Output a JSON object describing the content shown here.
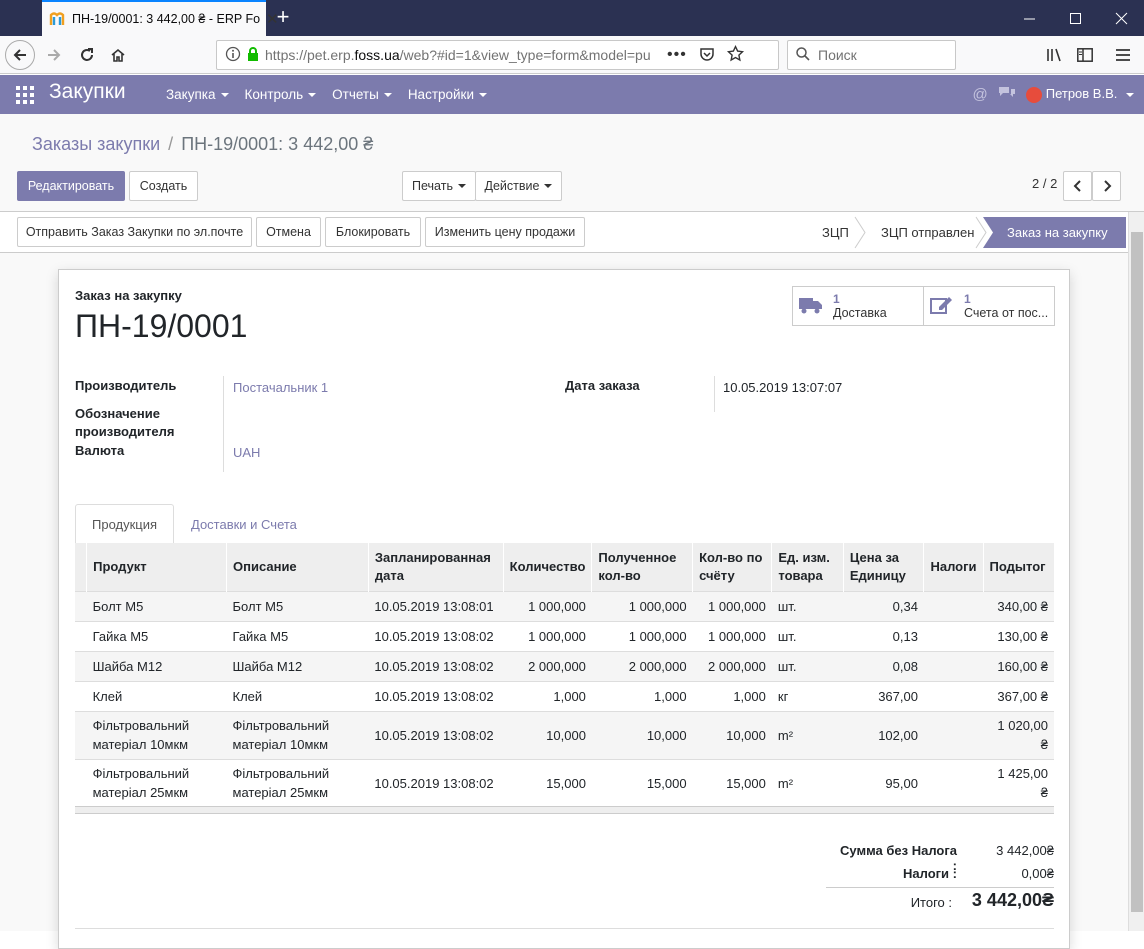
{
  "browser": {
    "tab_title": "ПН-19/0001: 3 442,00 ₴ - ERP Fo",
    "url_host": "https://pet.erp.",
    "url_domain": "foss.ua",
    "url_rest": "/web?#id=1&view_type=form&model=pu",
    "search_placeholder": "Поиск"
  },
  "app": {
    "name": "Закупки",
    "menu": [
      "Закупка",
      "Контроль",
      "Отчеты",
      "Настройки"
    ],
    "user": "Петров В.В."
  },
  "breadcrumb": {
    "parent": "Заказы закупки",
    "current": "ПН-19/0001: 3 442,00 ₴"
  },
  "buttons": {
    "edit": "Редактировать",
    "create": "Создать",
    "print": "Печать",
    "action": "Действие",
    "send_email": "Отправить Заказ Закупки по эл.почте",
    "cancel": "Отмена",
    "block": "Блокировать",
    "change_price": "Изменить цену продажи"
  },
  "pager": "2 / 2",
  "stages": [
    "ЗЦП",
    "ЗЦП отправлен",
    "Заказ на закупку"
  ],
  "active_stage": "Заказ на закупку",
  "form": {
    "doc_type": "Заказ на закупку",
    "doc_number": "ПН-19/0001",
    "smart_buttons": [
      {
        "count": "1",
        "label": "Доставка",
        "icon": "truck-icon"
      },
      {
        "count": "1",
        "label": "Счета от пос...",
        "icon": "pencil-square-icon"
      }
    ],
    "vendor_label": "Производитель",
    "vendor_value": "Постачальник 1",
    "vendor_ref_label": "Обозначение производителя",
    "currency_label": "Валюта",
    "currency_value": "UAH",
    "order_date_label": "Дата заказа",
    "order_date_value": "10.05.2019 13:07:07"
  },
  "tabs": [
    "Продукция",
    "Доставки и Счета"
  ],
  "table": {
    "headers": [
      "Продукт",
      "Описание",
      "Запланированная дата",
      "Количество",
      "Полученное кол-во",
      "Кол-во по счёту",
      "Ед. изм. товара",
      "Цена за Единицу",
      "Налоги",
      "Подытог"
    ],
    "rows": [
      [
        "Болт М5",
        "Болт М5",
        "10.05.2019 13:08:01",
        "1 000,000",
        "1 000,000",
        "1 000,000",
        "шт.",
        "0,34",
        "",
        "340,00 ₴"
      ],
      [
        "Гайка М5",
        "Гайка М5",
        "10.05.2019 13:08:02",
        "1 000,000",
        "1 000,000",
        "1 000,000",
        "шт.",
        "0,13",
        "",
        "130,00 ₴"
      ],
      [
        "Шайба М12",
        "Шайба М12",
        "10.05.2019 13:08:02",
        "2 000,000",
        "2 000,000",
        "2 000,000",
        "шт.",
        "0,08",
        "",
        "160,00 ₴"
      ],
      [
        "Клей",
        "Клей",
        "10.05.2019 13:08:02",
        "1,000",
        "1,000",
        "1,000",
        "кг",
        "367,00",
        "",
        "367,00 ₴"
      ],
      [
        "Фільтровальний матеріал 10мкм",
        "Фільтровальний матеріал 10мкм",
        "10.05.2019 13:08:02",
        "10,000",
        "10,000",
        "10,000",
        "m²",
        "102,00",
        "",
        "1 020,00 ₴"
      ],
      [
        "Фільтровальний матеріал 25мкм",
        "Фільтровальний матеріал 25мкм",
        "10.05.2019 13:08:02",
        "15,000",
        "15,000",
        "15,000",
        "m²",
        "95,00",
        "",
        "1 425,00 ₴"
      ]
    ]
  },
  "totals": {
    "untaxed_label": "Сумма без Налога :",
    "untaxed_value": "3 442,00₴",
    "tax_label": "Налоги :",
    "tax_value": "0,00₴",
    "total_label": "Итого :",
    "total_value": "3 442,00₴"
  }
}
